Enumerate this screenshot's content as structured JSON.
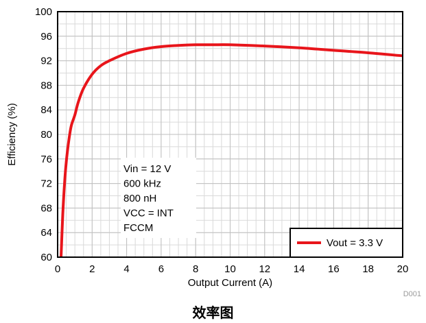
{
  "chart_data": {
    "type": "line",
    "xlabel": "Output Current (A)",
    "ylabel": "Efficiency (%)",
    "xlim": [
      0,
      20
    ],
    "ylim": [
      60,
      100
    ],
    "x_ticks": [
      0,
      2,
      4,
      6,
      8,
      10,
      12,
      14,
      16,
      18,
      20
    ],
    "y_ticks": [
      60,
      64,
      68,
      72,
      76,
      80,
      84,
      88,
      92,
      96,
      100
    ],
    "grid": true,
    "minor_grid_x_step": 0.5,
    "minor_grid_y_step": 2,
    "legend_position": "bottom-right",
    "annotation_lines": [
      "Vin = 12 V",
      "600 kHz",
      "800 nH",
      "VCC = INT",
      "FCCM"
    ],
    "series": [
      {
        "name": "Vout = 3.3 V",
        "color": "#e8151b",
        "x": [
          0.2,
          0.3,
          0.4,
          0.5,
          0.6,
          0.7,
          0.8,
          1.0,
          1.2,
          1.5,
          2.0,
          2.5,
          3.0,
          4.0,
          5.0,
          6.0,
          7.0,
          8.0,
          9.0,
          10.0,
          12.0,
          14.0,
          16.0,
          18.0,
          20.0
        ],
        "y": [
          60.0,
          67.0,
          72.0,
          75.5,
          78.0,
          80.0,
          81.5,
          83.2,
          85.3,
          87.5,
          89.8,
          91.2,
          92.0,
          93.2,
          93.9,
          94.3,
          94.5,
          94.6,
          94.6,
          94.6,
          94.4,
          94.1,
          93.7,
          93.3,
          92.8
        ]
      }
    ],
    "figure_id": "D001"
  },
  "caption": "效率图"
}
